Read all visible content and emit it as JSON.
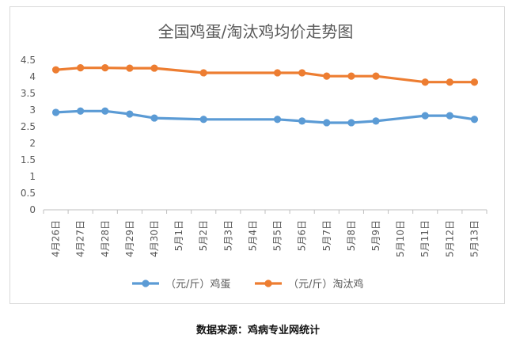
{
  "source_text": "数据来源：鸡病专业网统计",
  "chart_data": {
    "type": "line",
    "title": "全国鸡蛋/淘汰鸡均价走势图",
    "xlabel": "",
    "ylabel": "",
    "ylim": [
      0,
      4.5
    ],
    "yticks": [
      "0",
      "0.5",
      "1",
      "1.5",
      "2",
      "2.5",
      "3",
      "3.5",
      "4",
      "4.5"
    ],
    "grid": false,
    "legend_position": "bottom",
    "categories": [
      "4月26日",
      "4月27日",
      "4月28日",
      "4月29日",
      "4月30日",
      "5月1日",
      "5月2日",
      "5月3日",
      "5月4日",
      "5月5日",
      "5月6日",
      "5月7日",
      "5月8日",
      "5月9日",
      "5月10日",
      "5月11日",
      "5月12日",
      "5月13日"
    ],
    "series": [
      {
        "name": "（元/斤）鸡蛋",
        "color": "#5b9bd5",
        "values": [
          2.93,
          2.97,
          2.97,
          2.88,
          2.76,
          null,
          2.72,
          null,
          null,
          2.72,
          2.67,
          2.62,
          2.62,
          2.67,
          null,
          2.83,
          2.83,
          2.72
        ]
      },
      {
        "name": "（元/斤）淘汰鸡",
        "color": "#ed7d31",
        "values": [
          4.21,
          4.27,
          4.27,
          4.26,
          4.26,
          null,
          4.12,
          null,
          null,
          4.12,
          4.12,
          4.02,
          4.02,
          4.02,
          null,
          3.84,
          3.84,
          3.84
        ]
      }
    ]
  }
}
